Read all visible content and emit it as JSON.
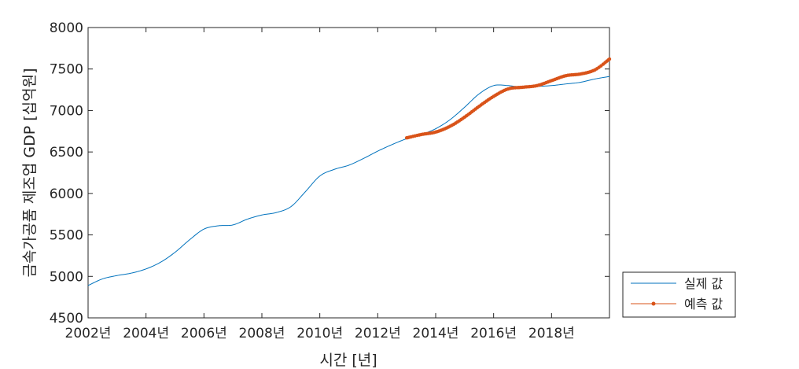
{
  "chart_data": {
    "type": "line",
    "xlabel": "시간 [년]",
    "ylabel": "금속가공품 제조업 GDP [십억원]",
    "xlim": [
      2002,
      2020
    ],
    "ylim": [
      4500,
      8000
    ],
    "grid": false,
    "legend_position": "outside-right-bottom",
    "x_ticks": [
      2002,
      2004,
      2006,
      2008,
      2010,
      2012,
      2014,
      2016,
      2018
    ],
    "x_tick_labels": [
      "2002년",
      "2004년",
      "2006년",
      "2008년",
      "2010년",
      "2012년",
      "2014년",
      "2016년",
      "2018년"
    ],
    "y_ticks": [
      4500,
      5000,
      5500,
      6000,
      6500,
      7000,
      7500,
      8000
    ],
    "y_tick_labels": [
      "4500",
      "5000",
      "5500",
      "6000",
      "6500",
      "7000",
      "7500",
      "8000"
    ],
    "series": [
      {
        "name": "실제 값",
        "color": "#0072bd",
        "marker": "none",
        "x": [
          2002.0,
          2002.5,
          2003.0,
          2003.5,
          2004.0,
          2004.5,
          2005.0,
          2005.5,
          2006.0,
          2006.5,
          2007.0,
          2007.5,
          2008.0,
          2008.5,
          2009.0,
          2009.5,
          2010.0,
          2010.5,
          2011.0,
          2011.5,
          2012.0,
          2012.5,
          2013.0,
          2013.5,
          2014.0,
          2014.5,
          2015.0,
          2015.5,
          2016.0,
          2016.5,
          2017.0,
          2017.5,
          2018.0,
          2018.5,
          2019.0,
          2019.5,
          2020.0
        ],
        "y": [
          4890,
          4970,
          5010,
          5040,
          5090,
          5170,
          5290,
          5440,
          5570,
          5610,
          5620,
          5690,
          5740,
          5770,
          5840,
          6020,
          6210,
          6290,
          6340,
          6420,
          6510,
          6590,
          6660,
          6710,
          6780,
          6890,
          7040,
          7200,
          7300,
          7300,
          7280,
          7290,
          7300,
          7320,
          7340,
          7380,
          7410
        ]
      },
      {
        "name": "예측 값",
        "color": "#d95319",
        "marker": "dot",
        "x": [
          2013.0,
          2013.5,
          2014.0,
          2014.5,
          2015.0,
          2015.5,
          2016.0,
          2016.5,
          2017.0,
          2017.5,
          2018.0,
          2018.5,
          2019.0,
          2019.5,
          2020.0
        ],
        "y": [
          6670,
          6710,
          6740,
          6810,
          6920,
          7050,
          7170,
          7260,
          7280,
          7300,
          7360,
          7420,
          7440,
          7490,
          7620
        ]
      }
    ]
  }
}
